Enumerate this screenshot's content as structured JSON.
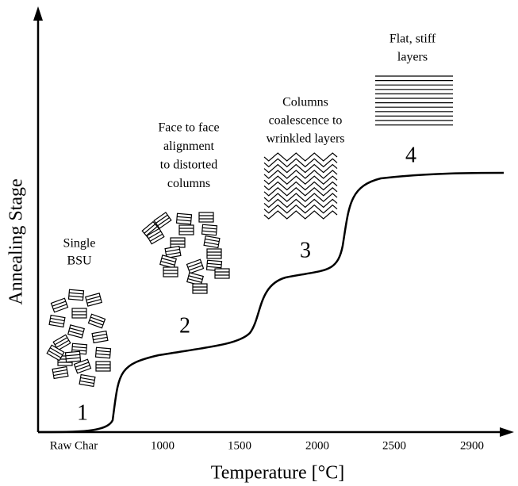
{
  "axes": {
    "x_label": "Temperature [°C]",
    "y_label": "Annealing Stage",
    "x_ticks": [
      "Raw Char",
      "1000",
      "1500",
      "2000",
      "2500",
      "2900"
    ]
  },
  "stages": [
    {
      "number": "1",
      "caption": [
        "Single",
        "BSU"
      ]
    },
    {
      "number": "2",
      "caption": [
        "Face to face",
        "alignment",
        "to distorted",
        "columns"
      ]
    },
    {
      "number": "3",
      "caption": [
        "Columns",
        "coalescence to",
        "wrinkled layers"
      ]
    },
    {
      "number": "4",
      "caption": [
        "Flat, stiff",
        "layers"
      ]
    }
  ]
}
